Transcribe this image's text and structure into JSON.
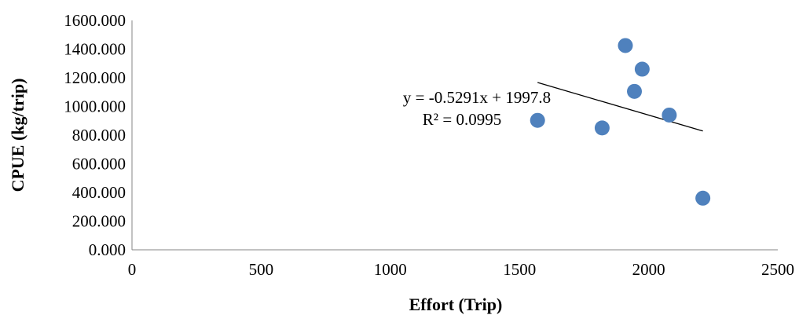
{
  "chart_data": {
    "type": "scatter",
    "xlabel": "Effort (Trip)",
    "ylabel": "CPUE (kg/trip)",
    "xlim": [
      0,
      2500
    ],
    "ylim": [
      0,
      1600
    ],
    "x_ticks": [
      0,
      500,
      1000,
      1500,
      2000,
      2500
    ],
    "y_ticks": [
      0,
      200,
      400,
      600,
      800,
      1000,
      1200,
      1400,
      1600
    ],
    "x_tick_labels": [
      "0",
      "500",
      "1000",
      "1500",
      "2000",
      "2500"
    ],
    "y_tick_labels": [
      "0.000",
      "200.000",
      "400.000",
      "600.000",
      "800.000",
      "1000.000",
      "1200.000",
      "1400.000",
      "1600.000"
    ],
    "grid": false,
    "legend": "none",
    "point_color": "#4f81bd",
    "series": [
      {
        "x": [
          1570,
          1820,
          1910,
          1945,
          1975,
          2080,
          2210
        ],
        "y": [
          903,
          850,
          1425,
          1105,
          1260,
          940,
          360
        ]
      }
    ],
    "trendline": {
      "slope": -0.5291,
      "intercept": 1997.8,
      "x_range": [
        1570,
        2210
      ],
      "color": "#000000"
    },
    "annotations": {
      "equation": "y = -0.5291x + 1997.8",
      "r_squared": "R² = 0.0995"
    }
  }
}
